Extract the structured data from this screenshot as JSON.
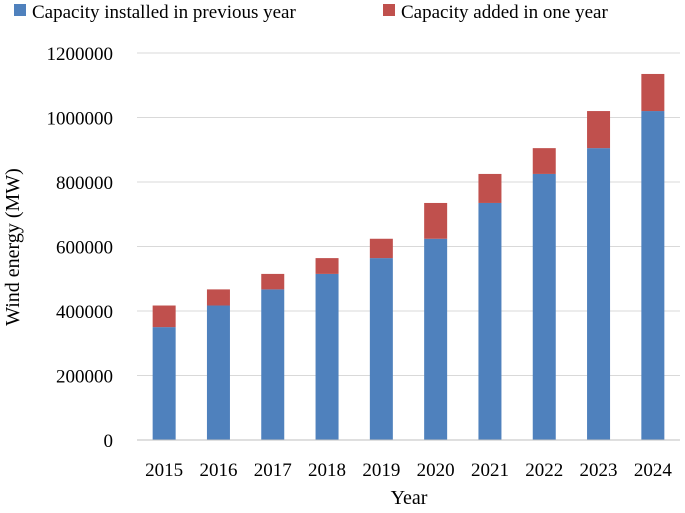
{
  "chart_data": {
    "type": "bar",
    "stacked": true,
    "title": "",
    "xlabel": "Year",
    "ylabel": "Wind energy (MW)",
    "categories": [
      "2015",
      "2016",
      "2017",
      "2018",
      "2019",
      "2020",
      "2021",
      "2022",
      "2023",
      "2024"
    ],
    "series": [
      {
        "name": "Capacity installed in previous year",
        "color": "#4f81bd",
        "values": [
          350000,
          417000,
          467000,
          515000,
          564000,
          624000,
          735000,
          825000,
          905000,
          1020000
        ]
      },
      {
        "name": "Capacity added in one year",
        "color": "#c0504d",
        "values": [
          67000,
          50000,
          48000,
          49000,
          60000,
          111000,
          90000,
          80000,
          115000,
          115000
        ]
      }
    ],
    "ylim": [
      0,
      1200000
    ],
    "yticks": [
      "0",
      "200000",
      "400000",
      "600000",
      "800000",
      "1000000",
      "1200000"
    ],
    "ytick_values": [
      0,
      200000,
      400000,
      600000,
      800000,
      1000000,
      1200000
    ],
    "grid": true,
    "legend_position": "top"
  }
}
